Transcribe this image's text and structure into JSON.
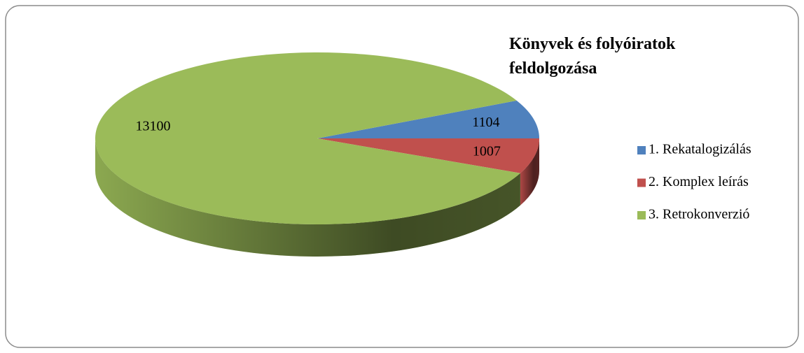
{
  "chart_data": {
    "type": "pie",
    "title": "Könyvek és folyóiratok feldolgozása",
    "categories": [
      "1. Rekatalogizálás",
      "2. Komplex leírás",
      "3. Retrokonverzió"
    ],
    "values": [
      1104,
      1007,
      13100
    ],
    "colors": [
      "#4f81bd",
      "#c0504d",
      "#9bbb59"
    ],
    "legend": "right"
  }
}
